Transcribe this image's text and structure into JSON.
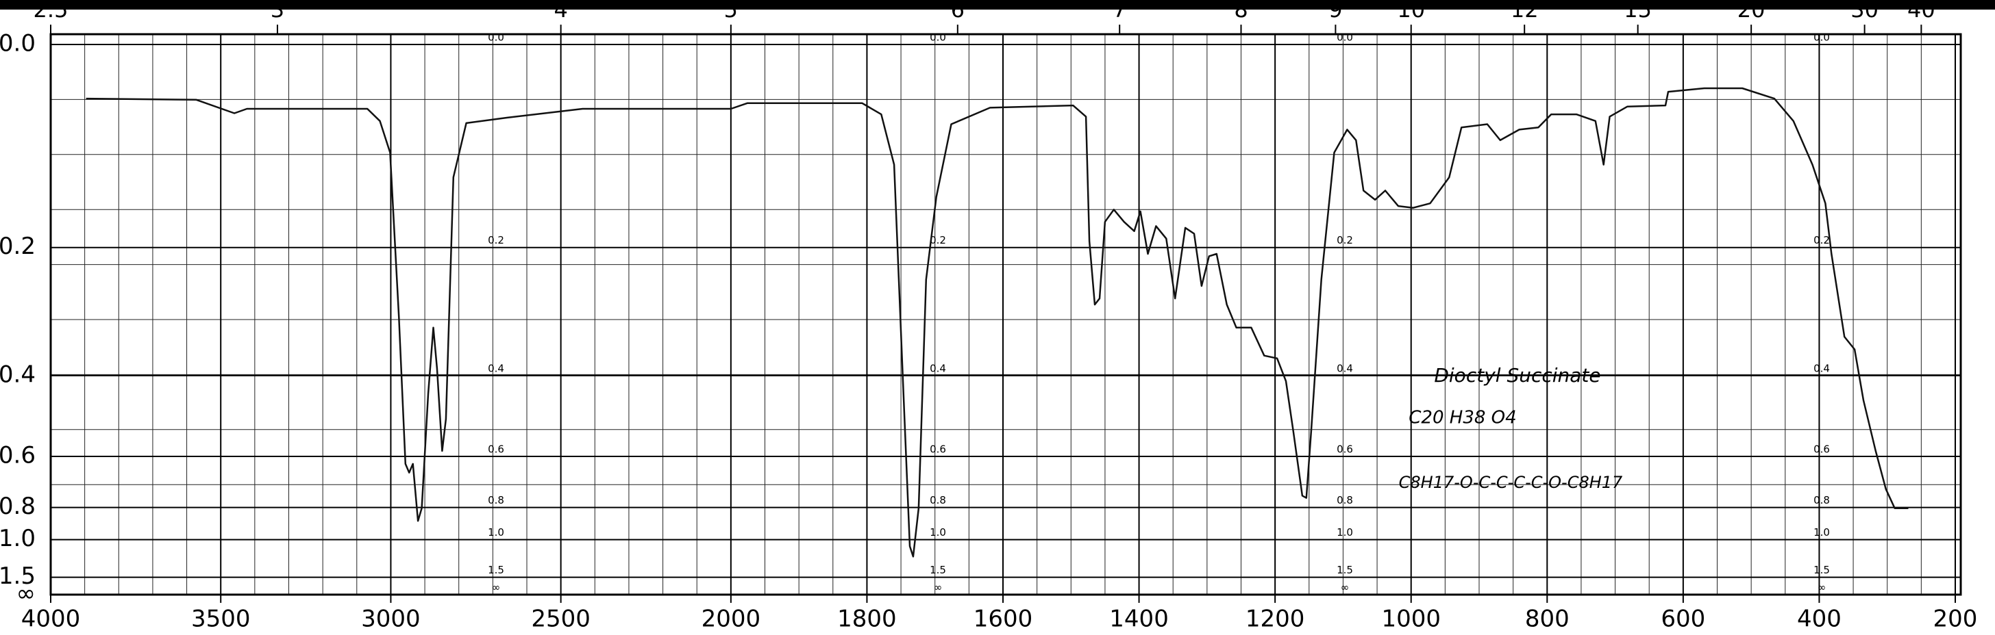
{
  "chart_data": {
    "type": "line",
    "yscale": "absorbance",
    "x_scale_change": {
      "at": 2000,
      "factor": 2
    },
    "xlim": [
      4000,
      200
    ],
    "xticks": [
      4000,
      3500,
      3000,
      2500,
      2000,
      1800,
      1600,
      1400,
      1200,
      1000,
      800,
      600,
      400,
      200
    ],
    "x2_reciprocal": 10000,
    "x2ticks": [
      2.5,
      3,
      4,
      5,
      6,
      7,
      8,
      9,
      10,
      12,
      15,
      20,
      30,
      40
    ],
    "ylim": [
      0,
      null
    ],
    "yticks": [
      {
        "value": 0,
        "label": "0.0"
      },
      0.2,
      0.4,
      0.6,
      0.8,
      {
        "value": 1,
        "label": "1.0"
      },
      1.5,
      {
        "value": null,
        "label": "∞"
      }
    ],
    "grid": true,
    "minor_grid": {
      "x_step": [
        100,
        50
      ],
      "y_transmittance_step": 0.1
    },
    "color": "#111111",
    "x": [
      3896,
      3572,
      3460,
      3423,
      3069,
      3032,
      3002,
      2976,
      2957,
      2946,
      2935,
      2920,
      2909,
      2890,
      2875,
      2864,
      2849,
      2838,
      2816,
      2778,
      2659,
      2436,
      2000,
      1976,
      1807,
      1779,
      1760,
      1747,
      1737,
      1732,
      1724,
      1713,
      1698,
      1676,
      1619,
      1497,
      1478,
      1473,
      1465,
      1458,
      1450,
      1437,
      1422,
      1407,
      1398,
      1387,
      1375,
      1360,
      1347,
      1332,
      1319,
      1308,
      1297,
      1286,
      1271,
      1257,
      1235,
      1216,
      1197,
      1184,
      1173,
      1160,
      1154,
      1147,
      1132,
      1113,
      1094,
      1081,
      1070,
      1053,
      1038,
      1019,
      997,
      972,
      944,
      926,
      888,
      869,
      841,
      813,
      794,
      757,
      729,
      717,
      708,
      682,
      626,
      622,
      569,
      513,
      466,
      438,
      410,
      391,
      382,
      363,
      348,
      335,
      317,
      302,
      289,
      269
    ],
    "values": [
      0.045,
      0.046,
      0.058,
      0.054,
      0.054,
      0.065,
      0.095,
      0.298,
      0.624,
      0.654,
      0.624,
      0.873,
      0.804,
      0.438,
      0.314,
      0.386,
      0.583,
      0.496,
      0.12,
      0.067,
      0.062,
      0.054,
      0.054,
      0.049,
      0.049,
      0.059,
      0.107,
      0.411,
      1.056,
      1.16,
      0.804,
      0.242,
      0.141,
      0.068,
      0.053,
      0.051,
      0.061,
      0.192,
      0.278,
      0.269,
      0.169,
      0.155,
      0.169,
      0.18,
      0.157,
      0.208,
      0.174,
      0.189,
      0.269,
      0.176,
      0.183,
      0.251,
      0.211,
      0.208,
      0.278,
      0.314,
      0.314,
      0.362,
      0.367,
      0.411,
      0.529,
      0.745,
      0.755,
      0.529,
      0.242,
      0.095,
      0.073,
      0.083,
      0.134,
      0.144,
      0.134,
      0.151,
      0.153,
      0.148,
      0.12,
      0.071,
      0.068,
      0.083,
      0.073,
      0.071,
      0.059,
      0.059,
      0.065,
      0.107,
      0.061,
      0.052,
      0.051,
      0.039,
      0.036,
      0.036,
      0.045,
      0.065,
      0.107,
      0.148,
      0.208,
      0.329,
      0.351,
      0.452,
      0.583,
      0.717,
      0.804,
      0.804
    ],
    "annotations": [
      "Dioctyl Succinate",
      "C20 H38 O4",
      "C8H17-O-C-C-C-C-O-C8H17"
    ]
  }
}
